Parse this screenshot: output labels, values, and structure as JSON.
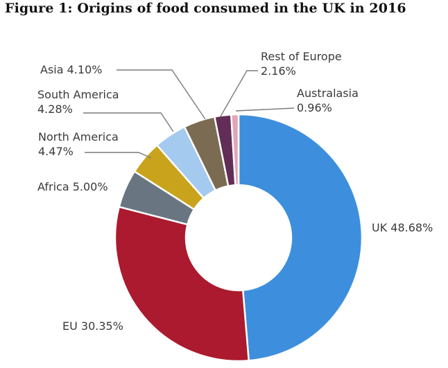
{
  "figure_title": "Figure 1: Origins of food consumed in the UK in 2016",
  "chart_data": {
    "type": "pie",
    "variant": "donut",
    "title": "Figure 1: Origins of food consumed in the UK in 2016",
    "slices": [
      {
        "name": "UK",
        "value": 48.68,
        "value_label": "48.68%",
        "color": "#3d8fdd"
      },
      {
        "name": "EU",
        "value": 30.35,
        "value_label": "30.35%",
        "color": "#ab1a2e"
      },
      {
        "name": "Africa",
        "value": 5.0,
        "value_label": "5.00%",
        "color": "#697682"
      },
      {
        "name": "North America",
        "value": 4.47,
        "value_label": "4.47%",
        "color": "#c9a31b"
      },
      {
        "name": "South America",
        "value": 4.28,
        "value_label": "4.28%",
        "color": "#a4caef"
      },
      {
        "name": "Asia",
        "value": 4.1,
        "value_label": "4.10%",
        "color": "#7b6b52"
      },
      {
        "name": "Rest of Europe",
        "value": 2.16,
        "value_label": "2.16%",
        "color": "#622d56"
      },
      {
        "name": "Australasia",
        "value": 0.96,
        "value_label": "0.96%",
        "color": "#e2a5b6"
      }
    ],
    "labels": [
      {
        "id": "uk",
        "line1": "UK 48.68%"
      },
      {
        "id": "eu",
        "line1": "EU 30.35%"
      },
      {
        "id": "africa",
        "line1": "Africa 5.00%"
      },
      {
        "id": "north-america",
        "line1": "North America",
        "line2": "4.47%"
      },
      {
        "id": "south-america",
        "line1": "South America",
        "line2": "4.28%"
      },
      {
        "id": "asia",
        "line1": "Asia 4.10%"
      },
      {
        "id": "rest-of-europe",
        "line1": "Rest of Europe",
        "line2": "2.16%"
      },
      {
        "id": "australasia",
        "line1": "Australasia",
        "line2": "0.96%"
      }
    ]
  }
}
